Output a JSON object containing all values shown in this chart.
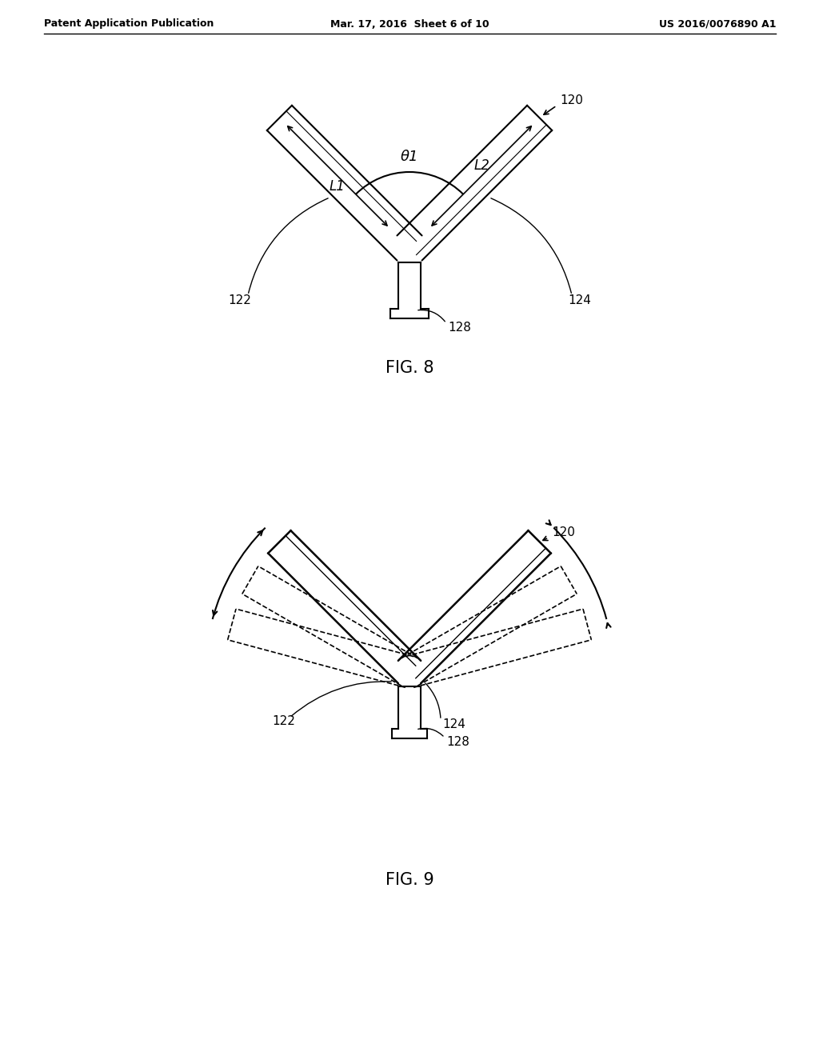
{
  "bg_color": "#ffffff",
  "line_color": "#000000",
  "header_left": "Patent Application Publication",
  "header_mid": "Mar. 17, 2016  Sheet 6 of 10",
  "header_right": "US 2016/0076890 A1",
  "fig8_label": "FIG. 8",
  "fig9_label": "FIG. 9",
  "label_120_1": "120",
  "label_120_2": "120",
  "label_122_1": "122",
  "label_124_1": "124",
  "label_128_1": "128",
  "label_122_2": "122",
  "label_124_2": "124",
  "label_128_2": "128",
  "label_L1": "L1",
  "label_L2": "L2",
  "label_theta": "θ1"
}
